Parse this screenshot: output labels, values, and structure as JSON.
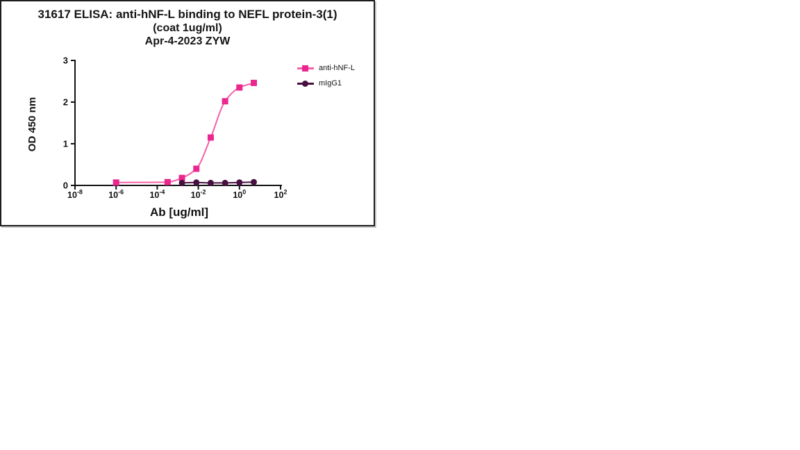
{
  "figure": {
    "title_line1": "31617 ELISA: anti-hNF-L binding to NEFL protein-3(1)",
    "title_line2": "(coat 1ug/ml)",
    "title_line3": "Apr-4-2023 ZYW"
  },
  "chart_data": {
    "type": "line",
    "title": "31617 ELISA: anti-hNF-L binding to NEFL protein-3(1) (coat 1ug/ml) Apr-4-2023 ZYW",
    "xlabel": "Ab [ug/ml]",
    "ylabel": "OD 450 nm",
    "x_scale": "log10",
    "xlim_log10": [
      -8,
      2
    ],
    "ylim": [
      0,
      3
    ],
    "x_tick_exponents": [
      -8,
      -6,
      -4,
      -2,
      0,
      2
    ],
    "y_ticks": [
      0,
      1,
      2,
      3
    ],
    "grid": false,
    "legend_position": "upper right",
    "axis_color": "#111111",
    "series": [
      {
        "name": "anti-hNF-L",
        "marker": "square",
        "marker_color": "#E9278E",
        "line_color": "#F55FA8",
        "x": [
          1e-06,
          0.00032,
          0.0016,
          0.008,
          0.04,
          0.2,
          1,
          5
        ],
        "y": [
          0.07,
          0.08,
          0.18,
          0.4,
          1.15,
          2.02,
          2.35,
          2.46
        ]
      },
      {
        "name": "mIgG1",
        "marker": "circle",
        "marker_color": "#471040",
        "line_color": "#471040",
        "x": [
          0.0016,
          0.008,
          0.04,
          0.2,
          1,
          5
        ],
        "y": [
          0.06,
          0.07,
          0.06,
          0.06,
          0.07,
          0.08
        ]
      }
    ]
  }
}
